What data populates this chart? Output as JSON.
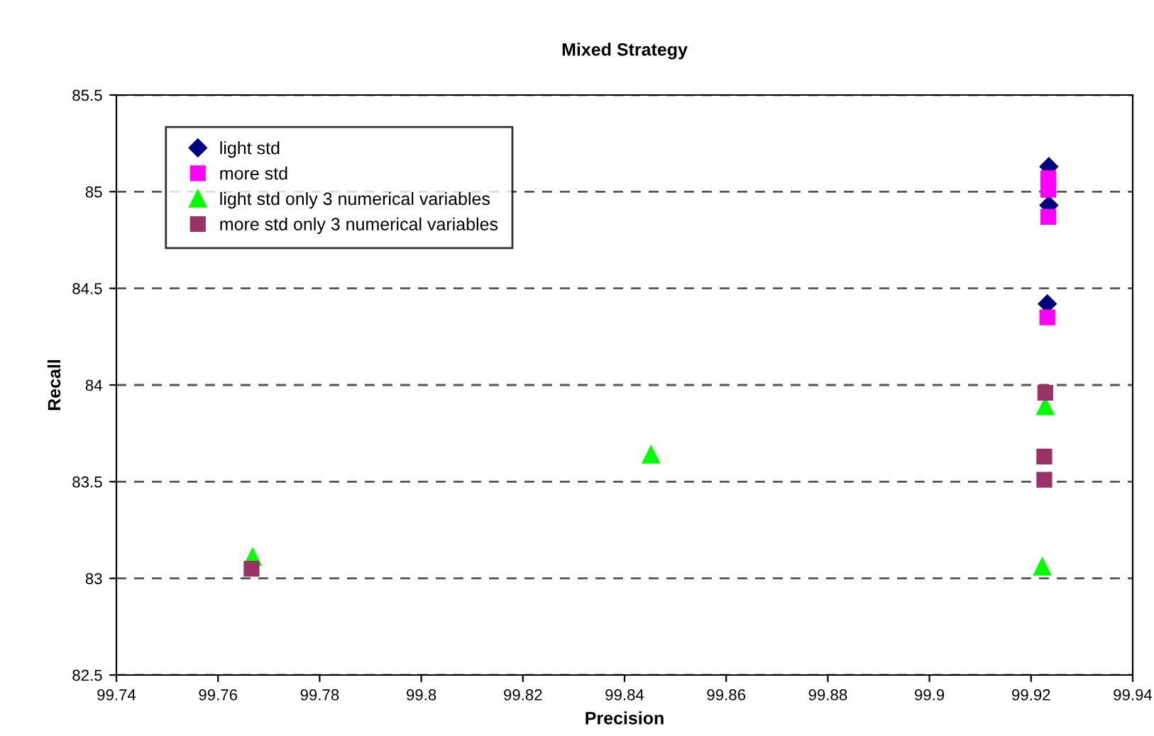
{
  "chart_data": {
    "type": "scatter",
    "title": "Mixed Strategy",
    "xlabel": "Precision",
    "ylabel": "Recall",
    "xlim": [
      99.74,
      99.94
    ],
    "xticks": [
      99.74,
      99.76,
      99.78,
      99.8,
      99.82,
      99.84,
      99.86,
      99.88,
      99.9,
      99.92,
      99.94
    ],
    "ylim": [
      82.5,
      85.5
    ],
    "yticks": [
      82.5,
      83,
      83.5,
      84,
      84.5,
      85,
      85.5
    ],
    "grid": "y",
    "legend": "top left",
    "series": [
      {
        "name": "light std",
        "color": "#000080",
        "marker": "diamond",
        "x": [
          99.9235,
          99.9235,
          99.9232
        ],
        "values": [
          85.13,
          84.93,
          84.42
        ]
      },
      {
        "name": "more std",
        "color": "#ff00ff",
        "marker": "square",
        "x": [
          99.9234,
          99.9234,
          99.9234,
          99.9232
        ],
        "values": [
          85.07,
          85.01,
          84.87,
          84.35
        ]
      },
      {
        "name": "light std only 3 numerical variables",
        "color": "#00ff00",
        "marker": "triangle",
        "x": [
          99.7668,
          99.8452,
          99.9228,
          99.9222
        ],
        "values": [
          83.11,
          83.64,
          83.89,
          83.06
        ]
      },
      {
        "name": "more std only 3 numerical variables",
        "color": "#993366",
        "marker": "square",
        "x": [
          99.7666,
          99.9228,
          99.9226,
          99.9226
        ],
        "values": [
          83.05,
          83.96,
          83.63,
          83.51
        ]
      }
    ]
  }
}
